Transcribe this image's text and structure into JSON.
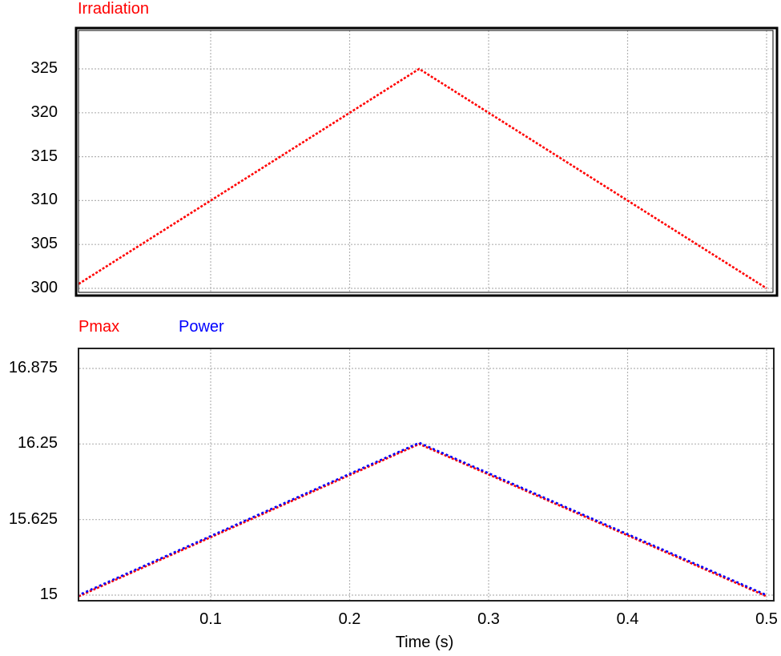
{
  "colors": {
    "red": "#ff0000",
    "blue": "#0000ff",
    "grid": "#b4b4b4",
    "frame": "#000000"
  },
  "chart_data": [
    {
      "type": "line",
      "title": "Irradiation",
      "xlabel": "",
      "ylabel": "",
      "xlim": [
        0,
        0.5
      ],
      "ylim": [
        299.5,
        329.2
      ],
      "yticks": [
        300,
        305,
        310,
        315,
        320,
        325
      ],
      "ytick_labels": [
        "300",
        "305",
        "310",
        "315",
        "320",
        "325"
      ],
      "xticks": [
        0.1,
        0.2,
        0.3,
        0.4,
        0.5
      ],
      "grid": true,
      "series": [
        {
          "name": "Irradiation",
          "color": "#ff0000",
          "x": [
            0.005,
            0.25,
            0.5
          ],
          "y": [
            300.5,
            325,
            300
          ]
        }
      ]
    },
    {
      "type": "line",
      "title": "Pmax / Power",
      "xlabel": "Time (s)",
      "ylabel": "",
      "xlim": [
        0,
        0.5
      ],
      "ylim": [
        14.96,
        17.01
      ],
      "yticks": [
        15,
        15.625,
        16.25,
        16.875
      ],
      "ytick_labels": [
        "15",
        "15.625",
        "16.25",
        "16.875"
      ],
      "xticks": [
        0.1,
        0.2,
        0.3,
        0.4,
        0.5
      ],
      "xtick_labels": [
        "0.1",
        "0.2",
        "0.3",
        "0.4",
        "0.5"
      ],
      "grid": true,
      "legend": [
        "Pmax",
        "Power"
      ],
      "series": [
        {
          "name": "Pmax",
          "color": "#ff0000",
          "x": [
            0.005,
            0.25,
            0.5
          ],
          "y": [
            14.99,
            16.25,
            14.99
          ]
        },
        {
          "name": "Power",
          "color": "#0000ff",
          "x": [
            0.005,
            0.25,
            0.5
          ],
          "y": [
            15.0,
            16.26,
            15.0
          ]
        }
      ]
    }
  ],
  "top": {
    "title": "Irradiation"
  },
  "bottom": {
    "legend_pmax": "Pmax",
    "legend_power": "Power",
    "xlabel": "Time (s)"
  }
}
